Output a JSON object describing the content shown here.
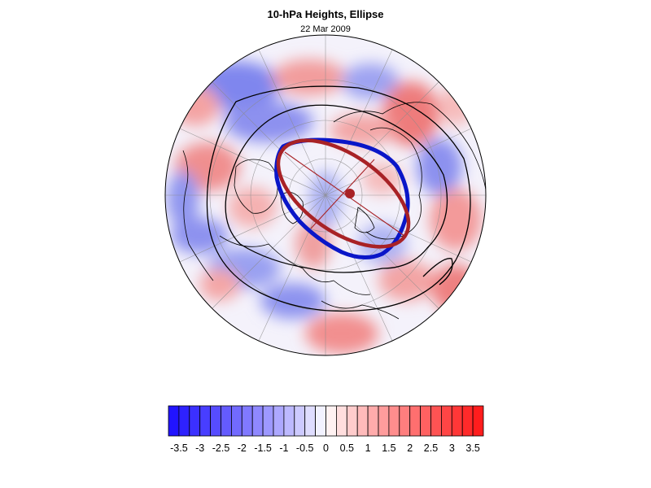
{
  "title": "10-hPa Heights, Ellipse",
  "subtitle": "22 Mar 2009",
  "colors": {
    "ellipse_observed": "#0a16c8",
    "ellipse_fit": "#a82226",
    "contour": "#000000",
    "negative_max": "#1a0dff",
    "positive_max": "#ff1616"
  },
  "colorbar": {
    "levels": [
      -3.75,
      -3.5,
      -3.25,
      -3,
      -2.75,
      -2.5,
      -2.25,
      -2,
      -1.75,
      -1.5,
      -1.25,
      -1,
      -0.75,
      -0.5,
      -0.25,
      0,
      0.25,
      0.5,
      0.75,
      1,
      1.25,
      1.5,
      1.75,
      2,
      2.25,
      2.5,
      2.75,
      3,
      3.25,
      3.5,
      3.75
    ],
    "labels": [
      "-3.5",
      "-3",
      "-2.5",
      "-2",
      "-1.5",
      "-1",
      "-0.5",
      "0",
      "0.5",
      "1",
      "1.5",
      "2",
      "2.5",
      "3",
      "3.5"
    ]
  }
}
